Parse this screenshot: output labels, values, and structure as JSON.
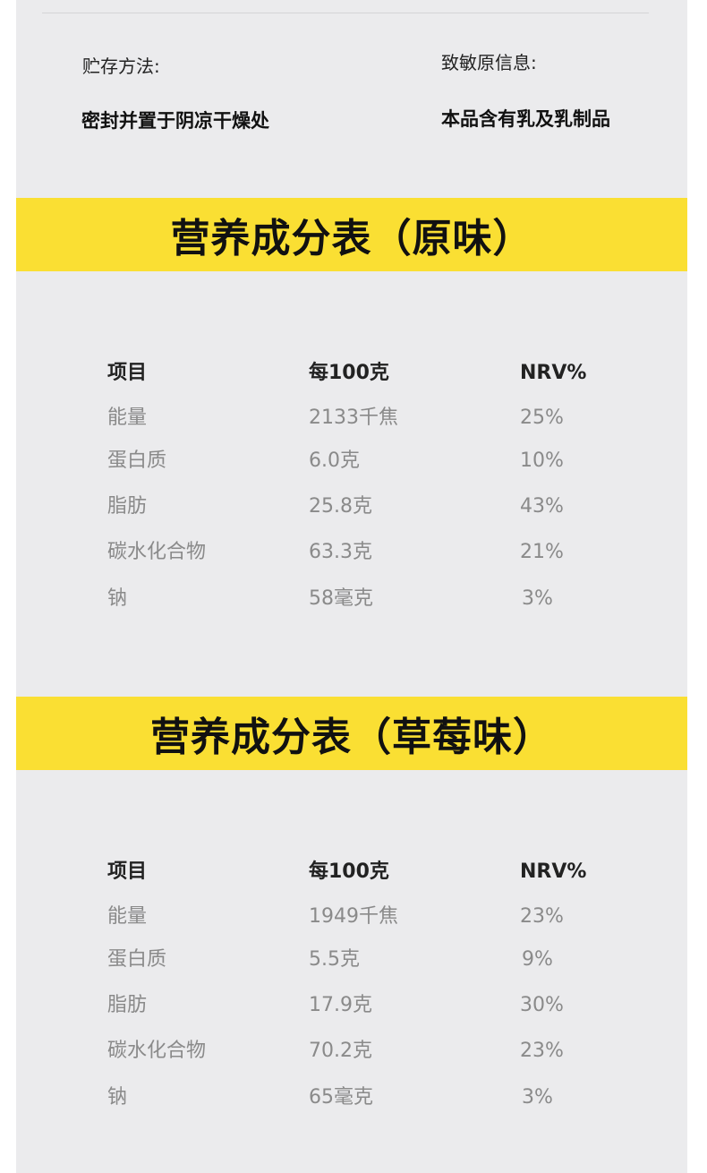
{
  "storage": {
    "label": "贮存方法:",
    "value": "密封并置于阴凉干燥处"
  },
  "allergen": {
    "label": "致敏原信息:",
    "value": "本品含有乳及乳制品"
  },
  "colors": {
    "accent": "#fadf33",
    "panel": "#ebebed"
  },
  "tables": [
    {
      "title": "营养成分表（原味）",
      "headers": [
        "项目",
        "每100克",
        "NRV%"
      ],
      "rows": [
        [
          "能量",
          "2133千焦",
          "25%"
        ],
        [
          "蛋白质",
          "6.0克",
          "10%"
        ],
        [
          "脂肪",
          "25.8克",
          "43%"
        ],
        [
          "碳水化合物",
          "63.3克",
          "21%"
        ],
        [
          "钠",
          "58毫克",
          "3%"
        ]
      ]
    },
    {
      "title": "营养成分表（草莓味）",
      "headers": [
        "项目",
        "每100克",
        "NRV%"
      ],
      "rows": [
        [
          "能量",
          "1949千焦",
          "23%"
        ],
        [
          "蛋白质",
          "5.5克",
          "9%"
        ],
        [
          "脂肪",
          "17.9克",
          "30%"
        ],
        [
          "碳水化合物",
          "70.2克",
          "23%"
        ],
        [
          "钠",
          "65毫克",
          "3%"
        ]
      ]
    }
  ]
}
